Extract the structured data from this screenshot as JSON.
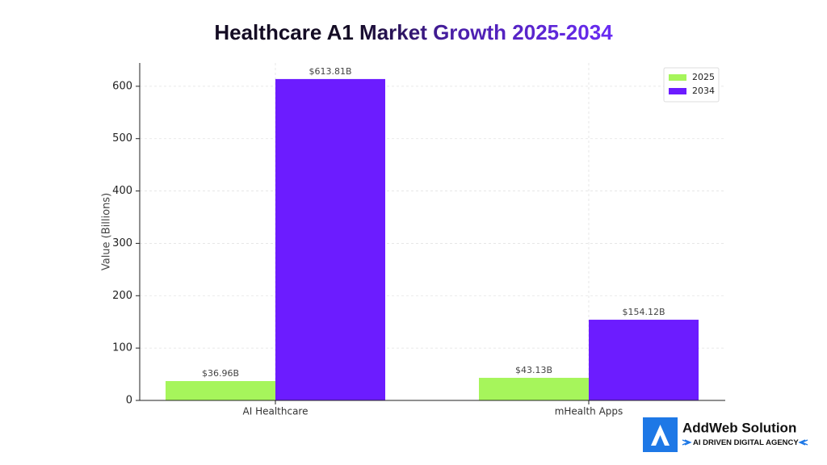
{
  "chart_data": {
    "type": "bar",
    "title": "Healthcare A1 Market Growth 2025-2034",
    "y_label": "Value (Billions)",
    "categories": [
      "AI Healthcare",
      "mHealth Apps"
    ],
    "series": [
      {
        "name": "2025",
        "color": "#a6f55b",
        "values": [
          36.96,
          43.13
        ],
        "value_labels": [
          "$36.96B",
          "$43.13B"
        ]
      },
      {
        "name": "2034",
        "color": "#6c1cff",
        "values": [
          613.81,
          154.12
        ],
        "value_labels": [
          "$613.81B",
          "$154.12B"
        ]
      }
    ],
    "ylim": [
      0,
      644.5
    ],
    "yticks": [
      0,
      100,
      200,
      300,
      400,
      500,
      600
    ],
    "grid": true,
    "legend": "upper right"
  },
  "logo": {
    "name": "AddWeb Solution",
    "tagline": "AI DRIVEN DIGITAL AGENCY"
  }
}
